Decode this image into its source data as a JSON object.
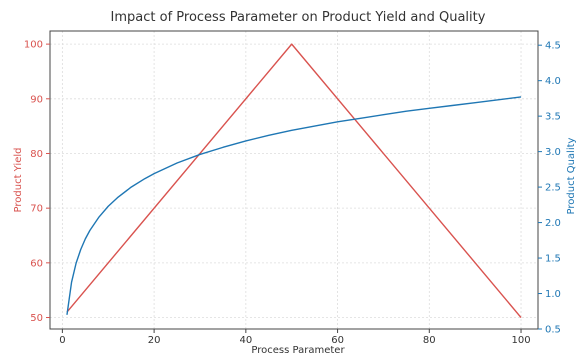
{
  "chart_data": {
    "type": "line",
    "title": "Impact of Process Parameter on Product Yield and Quality",
    "xlabel": "Process Parameter",
    "ylabel": "Product Yield",
    "y2label": "Product Quality",
    "xlim": [
      -2.7,
      103.7
    ],
    "ylim": [
      47.9,
      102.4
    ],
    "y2lim": [
      0.5,
      4.7
    ],
    "xticks": [
      0,
      20,
      40,
      60,
      80,
      100
    ],
    "yticks": [
      50,
      60,
      70,
      80,
      90,
      100
    ],
    "y2ticks": [
      0.5,
      1.0,
      1.5,
      2.0,
      2.5,
      3.0,
      3.5,
      4.0,
      4.5
    ],
    "grid": true,
    "colors": {
      "yield": "#d9534f",
      "quality": "#1f77b4"
    },
    "series": [
      {
        "axis": "left",
        "x": [
          1,
          50,
          100
        ],
        "values": [
          51,
          100,
          50
        ]
      },
      {
        "axis": "right",
        "x": [
          1,
          2,
          3,
          4,
          5,
          6,
          8,
          10,
          12,
          15,
          18,
          20,
          25,
          30,
          35,
          40,
          45,
          50,
          55,
          60,
          65,
          70,
          75,
          80,
          85,
          90,
          95,
          100
        ],
        "values": [
          0.7,
          1.16,
          1.43,
          1.62,
          1.77,
          1.89,
          2.08,
          2.23,
          2.35,
          2.5,
          2.62,
          2.69,
          2.84,
          2.96,
          3.06,
          3.15,
          3.23,
          3.3,
          3.36,
          3.42,
          3.47,
          3.52,
          3.57,
          3.61,
          3.65,
          3.69,
          3.73,
          3.77
        ]
      }
    ]
  }
}
